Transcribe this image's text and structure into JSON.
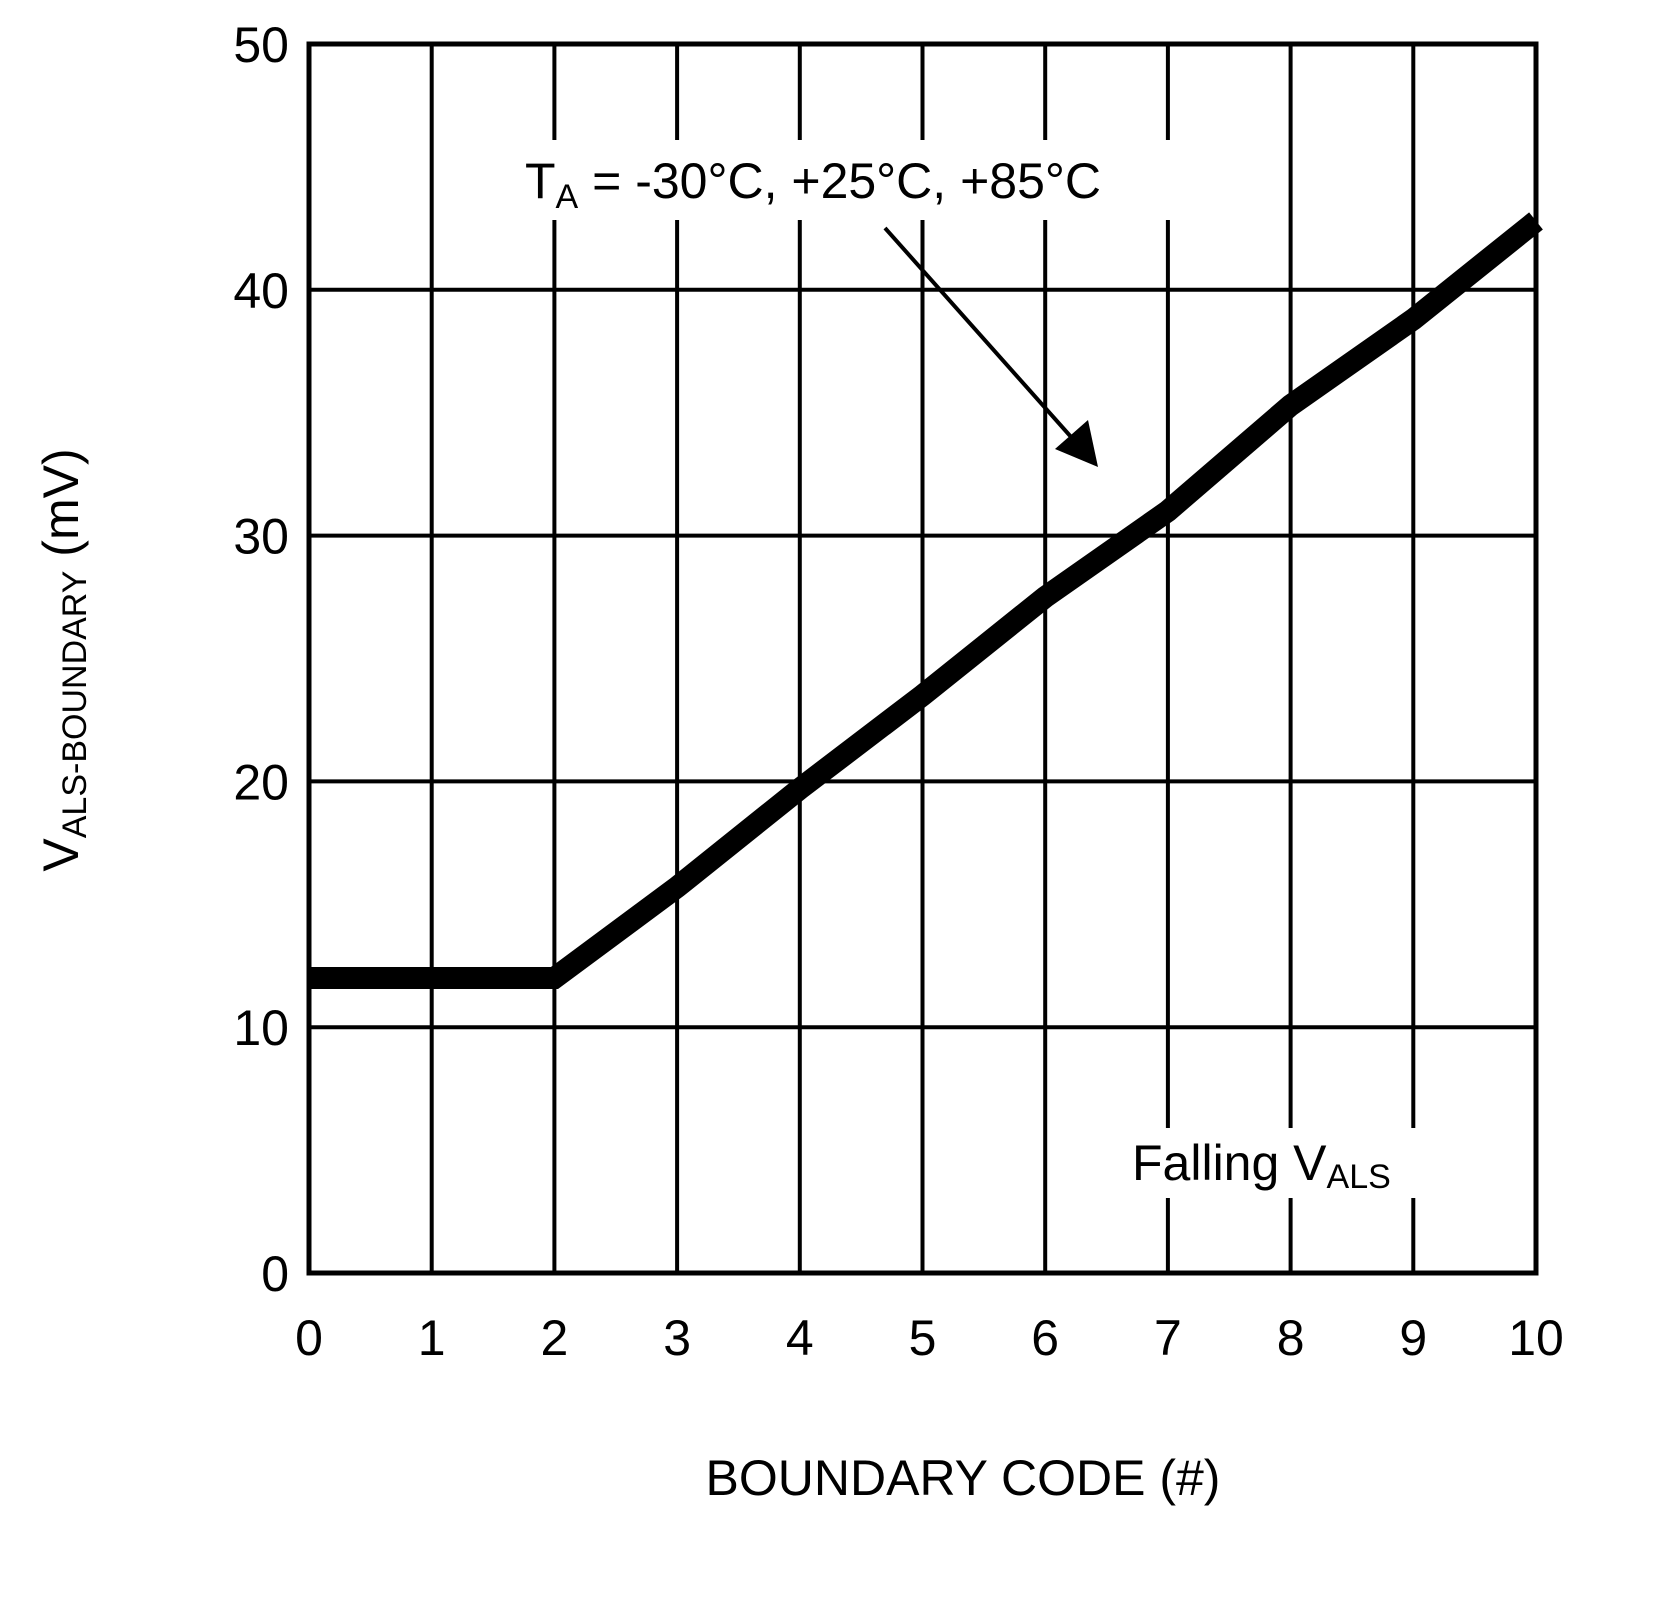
{
  "chart_data": {
    "type": "line",
    "title": "",
    "xlabel": "BOUNDARY CODE (#)",
    "ylabel": "V_ALS-BOUNDARY (mV)",
    "ylabel_main": "V",
    "ylabel_sub": "ALS-BOUNDARY",
    "ylabel_unit": " (mV)",
    "xlim": [
      0,
      10
    ],
    "ylim": [
      0,
      50
    ],
    "grid": true,
    "x_ticks": [
      "0",
      "1",
      "2",
      "3",
      "4",
      "5",
      "6",
      "7",
      "8",
      "9",
      "10"
    ],
    "y_ticks": [
      "0",
      "10",
      "20",
      "30",
      "40",
      "50"
    ],
    "x": [
      0,
      1,
      2,
      3,
      4,
      5,
      6,
      7,
      8,
      9,
      10
    ],
    "series": [
      {
        "name": "TA = -30°C, +25°C, +85°C",
        "values": [
          12.0,
          12.0,
          12.0,
          15.7,
          19.7,
          23.5,
          27.5,
          31.0,
          35.3,
          38.8,
          42.8
        ]
      }
    ],
    "annotations": [
      {
        "text_main": "T",
        "text_sub": "A",
        "text_rest": " = -30°C, +25°C, +85°C",
        "arrow": true
      },
      {
        "text_main": "Falling V",
        "text_sub": "ALS"
      }
    ]
  }
}
